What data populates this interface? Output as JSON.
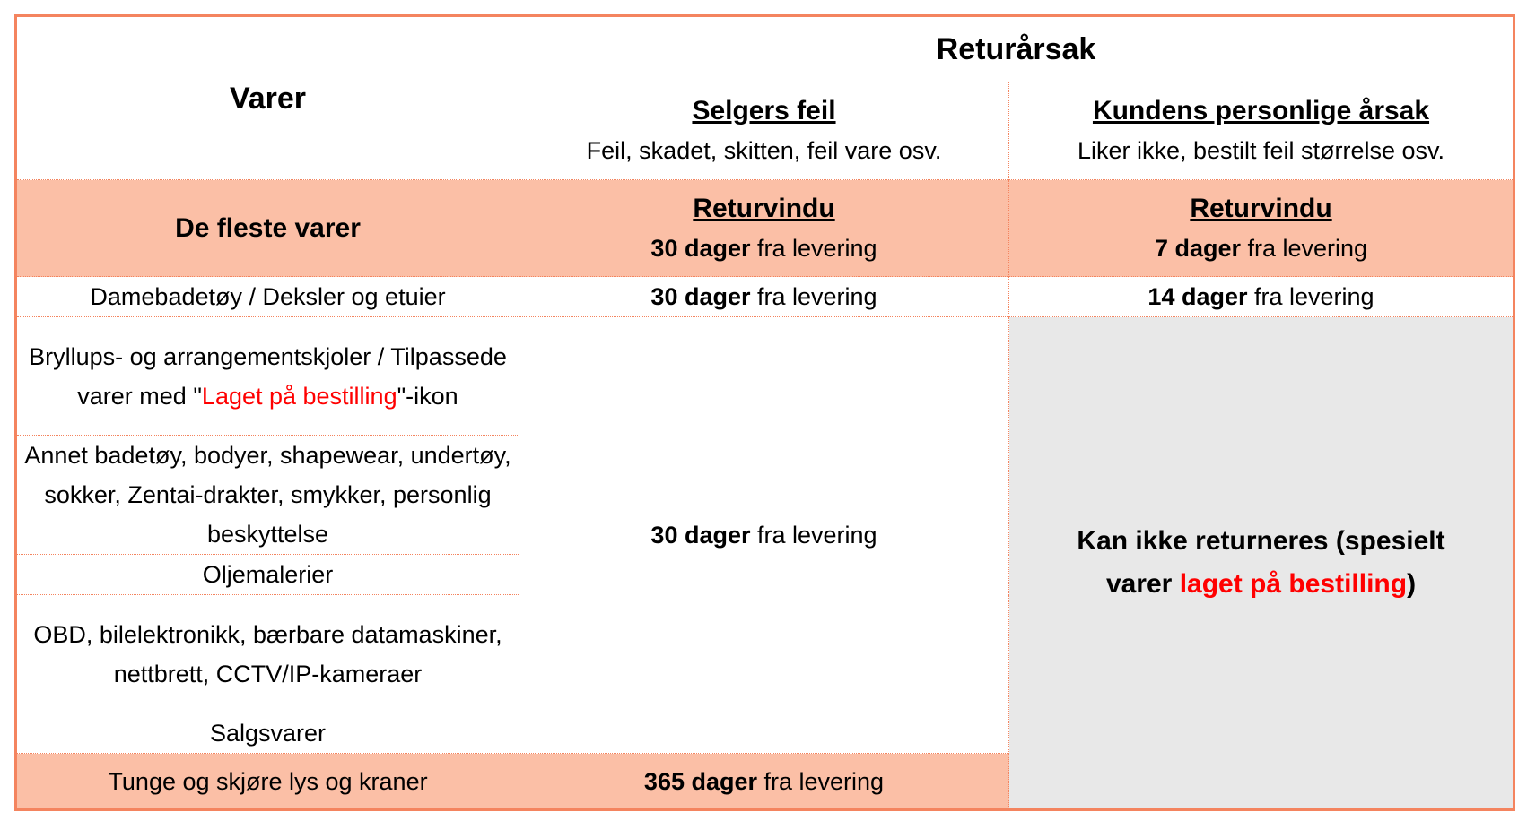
{
  "header": {
    "items_label": "Varer",
    "reason_label": "Returårsak",
    "seller": {
      "title": "Selgers feil",
      "desc": "Feil, skadet, skitten, feil vare osv."
    },
    "customer": {
      "title": "Kundens personlige årsak",
      "desc": "Liker ikke, bestilt feil størrelse osv."
    }
  },
  "most_items": {
    "label": "De fleste varer",
    "seller": {
      "title": "Returvindu",
      "days": "30 dager",
      "suffix": " fra levering"
    },
    "customer": {
      "title": "Returvindu",
      "days": "7 dager",
      "suffix": " fra levering"
    }
  },
  "rows": {
    "swimwear": {
      "label": "Damebadetøy / Deksler og etuier",
      "seller_days": "30 dager",
      "seller_suffix": " fra levering",
      "customer_days": "14 dager",
      "customer_suffix": " fra levering"
    },
    "wedding": {
      "label_pre": "Bryllups- og arrangementskjoler / Tilpassede varer med \"",
      "label_red": "Laget på bestilling",
      "label_post": "\"-ikon"
    },
    "other_swim": {
      "label": "Annet badetøy, bodyer, shapewear, undertøy, sokker, Zentai-drakter, smykker, personlig beskyttelse"
    },
    "oil": {
      "label": "Oljemalerier"
    },
    "obd": {
      "label": "OBD, bilelektronikk, bærbare datamaskiner, nettbrett, CCTV/IP-kameraer"
    },
    "sale": {
      "label": "Salgsvarer"
    },
    "group_seller_days": "30 dager",
    "group_seller_suffix": " fra levering",
    "no_return_pre": "Kan ikke returneres (spesielt varer ",
    "no_return_red": "laget på bestilling",
    "no_return_post": ")",
    "heavy": {
      "label": "Tunge og skjøre lys og kraner",
      "seller_days": "365 dager",
      "seller_suffix": " fra levering"
    }
  },
  "colors": {
    "border": "#f4845f",
    "peach": "#fbbfa6",
    "grey": "#e8e8e8",
    "red": "#ff0000"
  }
}
